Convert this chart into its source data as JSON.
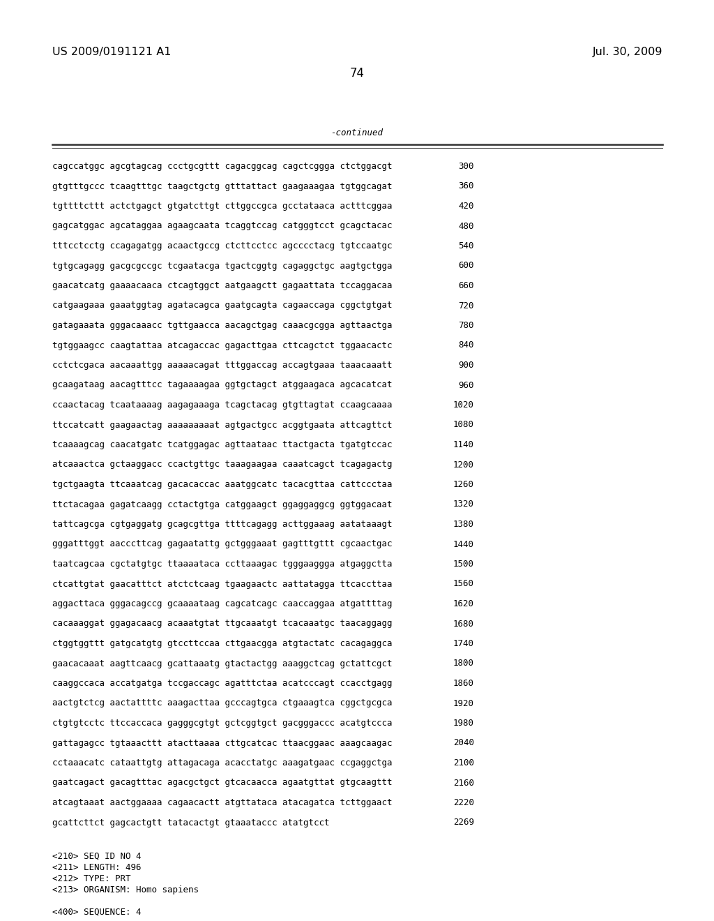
{
  "header_left": "US 2009/0191121 A1",
  "header_right": "Jul. 30, 2009",
  "page_number": "74",
  "continued_label": "-continued",
  "sequence_lines": [
    [
      "cagccatggc agcgtagcag ccctgcgttt cagacggcag cagctcggga ctctggacgt",
      "300"
    ],
    [
      "gtgtttgccc tcaagtttgc taagctgctg gtttattact gaagaaagaa tgtggcagat",
      "360"
    ],
    [
      "tgttttcttt actctgagct gtgatcttgt cttggccgca gcctataaca actttcggaa",
      "420"
    ],
    [
      "gagcatggac agcataggaa agaagcaata tcaggtccag catgggtcct gcagctacac",
      "480"
    ],
    [
      "tttcctcctg ccagagatgg acaactgccg ctcttcctcc agcccctacg tgtccaatgc",
      "540"
    ],
    [
      "tgtgcagagg gacgcgccgc tcgaatacga tgactcggtg cagaggctgc aagtgctgga",
      "600"
    ],
    [
      "gaacatcatg gaaaacaaca ctcagtggct aatgaagctt gagaattata tccaggacaa",
      "660"
    ],
    [
      "catgaagaaa gaaatggtag agatacagca gaatgcagta cagaaccaga cggctgtgat",
      "720"
    ],
    [
      "gatagaaata gggacaaacc tgttgaacca aacagctgag caaacgcgga agttaactga",
      "780"
    ],
    [
      "tgtggaagcc caagtattaa atcagaccac gagacttgaa cttcagctct tggaacactc",
      "840"
    ],
    [
      "cctctcgaca aacaaattgg aaaaacagat tttggaccag accagtgaaa taaacaaatt",
      "900"
    ],
    [
      "gcaagataag aacagtttcc tagaaaagaa ggtgctagct atggaagaca agcacatcat",
      "960"
    ],
    [
      "ccaactacag tcaataaaag aagagaaaga tcagctacag gtgttagtat ccaagcaaaa",
      "1020"
    ],
    [
      "ttccatcatt gaagaactag aaaaaaaaat agtgactgcc acggtgaata attcagttct",
      "1080"
    ],
    [
      "tcaaaagcag caacatgatc tcatggagac agttaataac ttactgacta tgatgtccac",
      "1140"
    ],
    [
      "atcaaactca gctaaggacc ccactgttgc taaagaagaa caaatcagct tcagagactg",
      "1200"
    ],
    [
      "tgctgaagta ttcaaatcag gacacaccac aaatggcatc tacacgttaa cattccctaa",
      "1260"
    ],
    [
      "ttctacagaa gagatcaagg cctactgtga catggaagct ggaggaggcg ggtggacaat",
      "1320"
    ],
    [
      "tattcagcga cgtgaggatg gcagcgttga ttttcagagg acttggaaag aatataaagt",
      "1380"
    ],
    [
      "gggatttggt aacccttcag gagaatattg gctgggaaat gagtttgttt cgcaactgac",
      "1440"
    ],
    [
      "taatcagcaa cgctatgtgc ttaaaataca ccttaaagac tgggaaggga atgaggctta",
      "1500"
    ],
    [
      "ctcattgtat gaacatttct atctctcaag tgaagaactc aattatagga ttcaccttaa",
      "1560"
    ],
    [
      "aggacttaca gggacagccg gcaaaataag cagcatcagc caaccaggaa atgattttag",
      "1620"
    ],
    [
      "cacaaaggat ggagacaacg acaaatgtat ttgcaaatgt tcacaaatgc taacaggagg",
      "1680"
    ],
    [
      "ctggtggttt gatgcatgtg gtccttccaa cttgaacgga atgtactatc cacagaggca",
      "1740"
    ],
    [
      "gaacacaaat aagttcaacg gcattaaatg gtactactgg aaaggctcag gctattcgct",
      "1800"
    ],
    [
      "caaggccaca accatgatga tccgaccagc agatttctaa acatcccagt ccacctgagg",
      "1860"
    ],
    [
      "aactgtctcg aactattttc aaagacttaa gcccagtgca ctgaaagtca cggctgcgca",
      "1920"
    ],
    [
      "ctgtgtcctc ttccaccaca gagggcgtgt gctcggtgct gacgggaccc acatgtccca",
      "1980"
    ],
    [
      "gattagagcc tgtaaacttt atacttaaaa cttgcatcac ttaacggaac aaagcaagac",
      "2040"
    ],
    [
      "cctaaacatc cataattgtg attagacaga acacctatgc aaagatgaac ccgaggctga",
      "2100"
    ],
    [
      "gaatcagact gacagtttac agacgctgct gtcacaacca agaatgttat gtgcaagttt",
      "2160"
    ],
    [
      "atcagtaaat aactggaaaa cagaacactt atgttataca atacagatca tcttggaact",
      "2220"
    ],
    [
      "gcattcttct gagcactgtt tatacactgt gtaaataccc atatgtcct",
      "2269"
    ]
  ],
  "footer_lines": [
    "<210> SEQ ID NO 4",
    "<211> LENGTH: 496",
    "<212> TYPE: PRT",
    "<213> ORGANISM: Homo sapiens",
    "",
    "<400> SEQUENCE: 4"
  ],
  "bg_color": "#ffffff",
  "text_color": "#000000",
  "font_size_header": 11.5,
  "font_size_body": 9.0,
  "font_size_page": 12,
  "line_color": "#444444"
}
